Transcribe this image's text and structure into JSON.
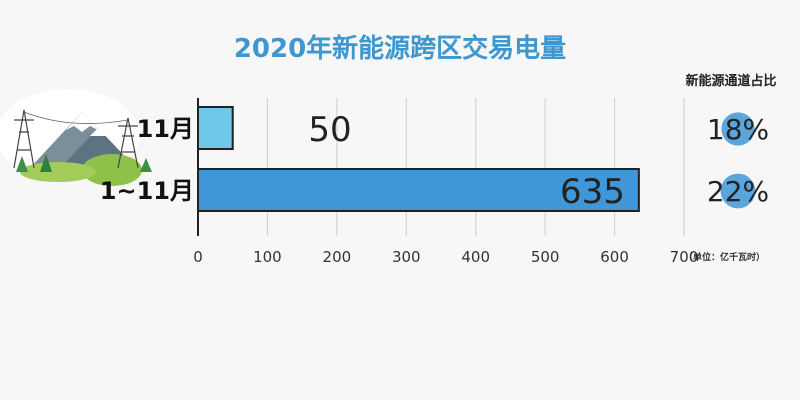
{
  "chart_data": {
    "type": "bar",
    "orientation": "horizontal",
    "title": "2020年新能源跨区交易电量",
    "categories": [
      "11月",
      "1~11月"
    ],
    "values": [
      50,
      635
    ],
    "value_labels": [
      "50",
      "635"
    ],
    "xlim": [
      0,
      700
    ],
    "x_ticks": [
      "0",
      "100",
      "200",
      "300",
      "400",
      "500",
      "600",
      "700"
    ],
    "grid": "vertical",
    "unit": "（单位：亿千瓦时）",
    "bar_colors": [
      "#6ec8e7",
      "#3f97d8"
    ],
    "secondary": {
      "header": "新能源通道占比",
      "values": [
        "18%",
        "22%"
      ],
      "ratios": [
        0.18,
        0.22
      ]
    }
  }
}
